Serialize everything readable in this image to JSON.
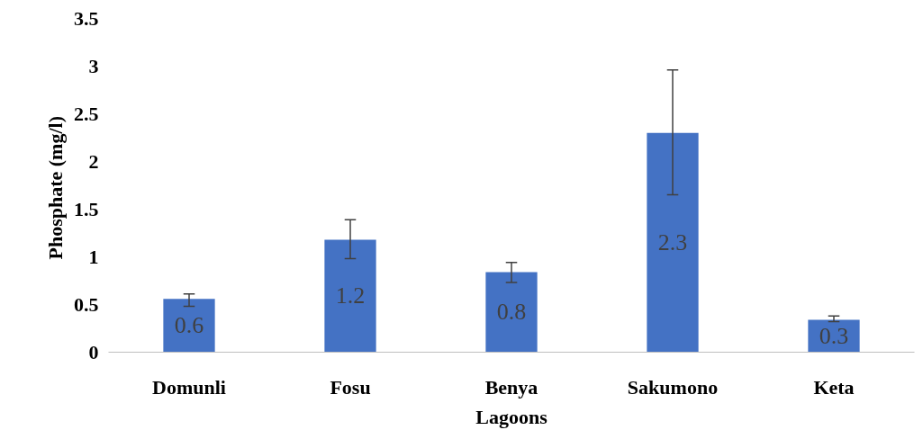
{
  "chart_data": {
    "type": "bar",
    "xlabel": "Lagoons",
    "ylabel": "Phosphate  (mg/l)",
    "categories": [
      "Domunli",
      "Fosu",
      "Benya",
      "Sakumono",
      "Keta"
    ],
    "values": [
      0.56,
      1.18,
      0.84,
      2.3,
      0.34
    ],
    "errors": [
      [
        0.48,
        0.61
      ],
      [
        0.98,
        1.39
      ],
      [
        0.73,
        0.94
      ],
      [
        1.65,
        2.96
      ],
      [
        0.32,
        0.38
      ]
    ],
    "value_labels": [
      "0.6",
      "1.2",
      "0.8",
      "2.3",
      "0.3"
    ],
    "color": "#4472c4",
    "ylim": [
      0,
      3.5
    ],
    "yticks": [
      0,
      0.5,
      1,
      1.5,
      2,
      2.5,
      3,
      3.5
    ],
    "grid": false
  }
}
